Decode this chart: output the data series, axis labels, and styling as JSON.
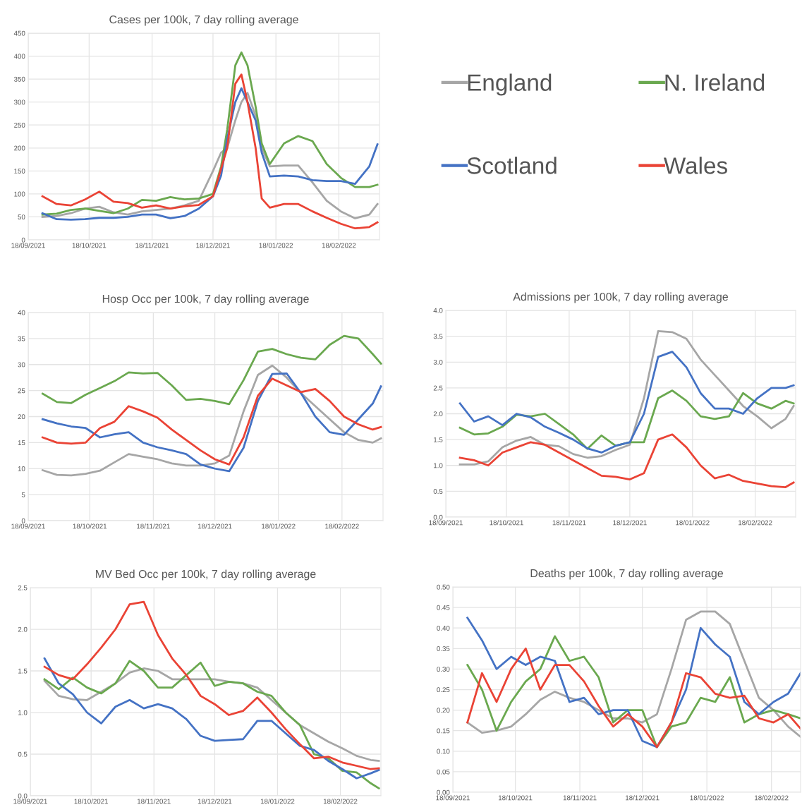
{
  "chart_data": [
    {
      "type": "line",
      "title": "Cases per 100k, 7 day rolling average",
      "legend": "right",
      "grid": true,
      "x": [
        "2021-09-25",
        "2021-10-02",
        "2021-10-09",
        "2021-10-16",
        "2021-10-23",
        "2021-10-30",
        "2021-11-06",
        "2021-11-13",
        "2021-11-20",
        "2021-11-27",
        "2021-12-04",
        "2021-12-11",
        "2021-12-18",
        "2021-12-22",
        "2021-12-25",
        "2021-12-29",
        "2022-01-01",
        "2022-01-04",
        "2022-01-08",
        "2022-01-11",
        "2022-01-15",
        "2022-01-22",
        "2022-01-29",
        "2022-02-05",
        "2022-02-12",
        "2022-02-19",
        "2022-02-26",
        "2022-03-05",
        "2022-03-09"
      ],
      "xlim": [
        "2021-09-18",
        "2022-03-10"
      ],
      "xticks": [
        {
          "value": "2021-09-18",
          "label": "18/09/2021"
        },
        {
          "value": "2021-10-18",
          "label": "18/10/2021"
        },
        {
          "value": "2021-11-18",
          "label": "18/11/2021"
        },
        {
          "value": "2021-12-18",
          "label": "18/12/2021"
        },
        {
          "value": "2022-01-18",
          "label": "18/01/2022"
        },
        {
          "value": "2022-02-18",
          "label": "18/02/2022"
        }
      ],
      "ylim": [
        0,
        450
      ],
      "yticks": [
        0,
        50,
        100,
        150,
        200,
        250,
        300,
        350,
        400,
        450
      ],
      "series": [
        {
          "name": "England",
          "color": "#a6a6a6",
          "values": [
            50,
            52,
            58,
            68,
            72,
            60,
            55,
            62,
            65,
            68,
            75,
            85,
            150,
            190,
            200,
            260,
            300,
            320,
            270,
            200,
            160,
            162,
            162,
            125,
            85,
            62,
            47,
            55,
            78
          ]
        },
        {
          "name": "N. Ireland",
          "color": "#6aa84f",
          "values": [
            55,
            57,
            65,
            68,
            63,
            58,
            68,
            87,
            85,
            93,
            88,
            90,
            100,
            160,
            240,
            380,
            408,
            380,
            290,
            210,
            165,
            210,
            226,
            215,
            165,
            135,
            115,
            115,
            120
          ]
        },
        {
          "name": "Scotland",
          "color": "#4472c4",
          "values": [
            58,
            45,
            44,
            45,
            48,
            48,
            50,
            55,
            55,
            47,
            52,
            68,
            95,
            140,
            220,
            300,
            330,
            300,
            260,
            190,
            138,
            140,
            138,
            130,
            128,
            128,
            122,
            160,
            208
          ]
        },
        {
          "name": "Wales",
          "color": "#ea4335",
          "values": [
            95,
            78,
            75,
            88,
            105,
            83,
            80,
            70,
            75,
            68,
            73,
            76,
            95,
            155,
            200,
            340,
            360,
            300,
            200,
            90,
            70,
            78,
            78,
            62,
            48,
            35,
            25,
            28,
            38
          ]
        }
      ]
    },
    {
      "type": "line",
      "title": "Hosp Occ per 100k, 7 day rolling average",
      "grid": true,
      "x": [
        "2021-09-25",
        "2021-10-02",
        "2021-10-09",
        "2021-10-16",
        "2021-10-23",
        "2021-10-30",
        "2021-11-06",
        "2021-11-13",
        "2021-11-20",
        "2021-11-27",
        "2021-12-04",
        "2021-12-11",
        "2021-12-18",
        "2021-12-25",
        "2022-01-01",
        "2022-01-08",
        "2022-01-15",
        "2022-01-22",
        "2022-01-29",
        "2022-02-05",
        "2022-02-12",
        "2022-02-19",
        "2022-02-26",
        "2022-03-05",
        "2022-03-09"
      ],
      "xlim": [
        "2021-09-18",
        "2022-03-10"
      ],
      "xticks": [
        {
          "value": "2021-09-18",
          "label": "18/09/2021"
        },
        {
          "value": "2021-10-18",
          "label": "18/10/2021"
        },
        {
          "value": "2021-11-18",
          "label": "18/11/2021"
        },
        {
          "value": "2021-12-18",
          "label": "18/12/2021"
        },
        {
          "value": "2022-01-18",
          "label": "18/01/2022"
        },
        {
          "value": "2022-02-18",
          "label": "18/02/2022"
        }
      ],
      "ylim": [
        0,
        40
      ],
      "yticks": [
        0,
        5,
        10,
        15,
        20,
        25,
        30,
        35,
        40
      ],
      "series": [
        {
          "color": "#a6a6a6",
          "values": [
            9.7,
            8.8,
            8.7,
            9.0,
            9.6,
            11.2,
            12.8,
            12.3,
            11.8,
            11.0,
            10.6,
            10.6,
            11.0,
            12.5,
            21,
            28,
            29.8,
            27.5,
            24.5,
            22,
            19.5,
            17,
            15.5,
            15,
            15.8
          ]
        },
        {
          "color": "#6aa84f",
          "values": [
            24.4,
            22.8,
            22.6,
            24.2,
            25.5,
            26.8,
            28.5,
            28.3,
            28.4,
            26,
            23.2,
            23.4,
            23.0,
            22.4,
            27,
            32.5,
            33,
            32,
            31.3,
            31,
            33.8,
            35.5,
            35,
            32,
            30.2
          ]
        },
        {
          "color": "#4472c4",
          "values": [
            19.5,
            18.7,
            18.1,
            17.8,
            16.0,
            16.6,
            17.0,
            15.0,
            14.1,
            13.5,
            12.8,
            10.8,
            10.0,
            9.5,
            14,
            23,
            28.2,
            28.3,
            24.5,
            20,
            17,
            16.5,
            19.5,
            22.5,
            25.8
          ]
        },
        {
          "color": "#ea4335",
          "values": [
            16,
            15,
            14.8,
            15,
            17.8,
            19,
            22,
            21,
            19.8,
            17.5,
            15.5,
            13.5,
            11.8,
            10.8,
            16,
            24,
            27.3,
            26,
            24.7,
            25.3,
            23,
            20,
            18.5,
            17.5,
            18
          ]
        }
      ]
    },
    {
      "type": "line",
      "title": "Admissions per 100k, 7 day rolling average",
      "grid": true,
      "x": [
        "2021-09-25",
        "2021-10-02",
        "2021-10-09",
        "2021-10-16",
        "2021-10-23",
        "2021-10-30",
        "2021-11-06",
        "2021-11-13",
        "2021-11-20",
        "2021-11-27",
        "2021-12-04",
        "2021-12-11",
        "2021-12-18",
        "2021-12-25",
        "2022-01-01",
        "2022-01-08",
        "2022-01-15",
        "2022-01-22",
        "2022-01-29",
        "2022-02-05",
        "2022-02-12",
        "2022-02-19",
        "2022-02-26",
        "2022-03-05",
        "2022-03-09"
      ],
      "xlim": [
        "2021-09-18",
        "2022-03-10"
      ],
      "xticks": [
        {
          "value": "2021-09-18",
          "label": "18/09/2021"
        },
        {
          "value": "2021-10-18",
          "label": "18/10/2021"
        },
        {
          "value": "2021-11-18",
          "label": "18/11/2021"
        },
        {
          "value": "2021-12-18",
          "label": "18/12/2021"
        },
        {
          "value": "2022-01-18",
          "label": "18/01/2022"
        },
        {
          "value": "2022-02-18",
          "label": "18/02/2022"
        }
      ],
      "ylim": [
        0,
        4
      ],
      "yticks": [
        {
          "value": 0,
          "label": "0.0"
        },
        {
          "value": 0.5,
          "label": "0.5"
        },
        {
          "value": 1,
          "label": "1.0"
        },
        {
          "value": 1.5,
          "label": "1.5"
        },
        {
          "value": 2,
          "label": "2.0"
        },
        {
          "value": 2.5,
          "label": "2.5"
        },
        {
          "value": 3,
          "label": "3.0"
        },
        {
          "value": 3.5,
          "label": "3.5"
        },
        {
          "value": 4,
          "label": "4.0"
        }
      ],
      "series": [
        {
          "color": "#a6a6a6",
          "values": [
            1.02,
            1.02,
            1.08,
            1.35,
            1.48,
            1.55,
            1.4,
            1.37,
            1.22,
            1.15,
            1.18,
            1.3,
            1.4,
            2.3,
            3.6,
            3.58,
            3.45,
            3.05,
            2.75,
            2.45,
            2.15,
            1.95,
            1.72,
            1.9,
            2.15
          ]
        },
        {
          "color": "#6aa84f",
          "values": [
            1.73,
            1.6,
            1.62,
            1.75,
            1.98,
            1.95,
            2.0,
            1.8,
            1.6,
            1.32,
            1.58,
            1.38,
            1.45,
            1.45,
            2.3,
            2.45,
            2.25,
            1.95,
            1.9,
            1.95,
            2.4,
            2.2,
            2.1,
            2.25,
            2.2
          ]
        },
        {
          "color": "#4472c4",
          "values": [
            2.2,
            1.85,
            1.95,
            1.78,
            2.0,
            1.93,
            1.75,
            1.63,
            1.5,
            1.33,
            1.25,
            1.38,
            1.45,
            2.0,
            3.1,
            3.2,
            2.9,
            2.4,
            2.1,
            2.1,
            2.0,
            2.3,
            2.5,
            2.5,
            2.55
          ]
        },
        {
          "color": "#ea4335",
          "values": [
            1.15,
            1.1,
            1.0,
            1.25,
            1.35,
            1.45,
            1.4,
            1.25,
            1.1,
            0.95,
            0.8,
            0.78,
            0.73,
            0.85,
            1.5,
            1.6,
            1.35,
            1.0,
            0.75,
            0.82,
            0.7,
            0.65,
            0.6,
            0.58,
            0.67
          ]
        }
      ]
    },
    {
      "type": "line",
      "title": "MV Bed Occ per 100k, 7 day rolling average",
      "grid": true,
      "x": [
        "2021-09-25",
        "2021-10-02",
        "2021-10-09",
        "2021-10-16",
        "2021-10-23",
        "2021-10-30",
        "2021-11-06",
        "2021-11-13",
        "2021-11-20",
        "2021-11-27",
        "2021-12-04",
        "2021-12-11",
        "2021-12-18",
        "2021-12-25",
        "2022-01-01",
        "2022-01-08",
        "2022-01-15",
        "2022-01-22",
        "2022-01-29",
        "2022-02-05",
        "2022-02-12",
        "2022-02-19",
        "2022-02-26",
        "2022-03-05",
        "2022-03-09"
      ],
      "xlim": [
        "2021-09-18",
        "2022-03-10"
      ],
      "xticks": [
        {
          "value": "2021-09-18",
          "label": "18/09/2021"
        },
        {
          "value": "2021-10-18",
          "label": "18/10/2021"
        },
        {
          "value": "2021-11-18",
          "label": "18/11/2021"
        },
        {
          "value": "2021-12-18",
          "label": "18/12/2021"
        },
        {
          "value": "2022-01-18",
          "label": "18/01/2022"
        },
        {
          "value": "2022-02-18",
          "label": "18/02/2022"
        }
      ],
      "ylim": [
        0,
        2.5
      ],
      "yticks": [
        {
          "value": 0,
          "label": "0.0"
        },
        {
          "value": 0.5,
          "label": "0.5"
        },
        {
          "value": 1,
          "label": "1.0"
        },
        {
          "value": 1.5,
          "label": "1.5"
        },
        {
          "value": 2,
          "label": "2.0"
        },
        {
          "value": 2.5,
          "label": "2.5"
        }
      ],
      "series": [
        {
          "color": "#a6a6a6",
          "values": [
            1.38,
            1.2,
            1.16,
            1.15,
            1.25,
            1.35,
            1.48,
            1.53,
            1.5,
            1.4,
            1.4,
            1.4,
            1.4,
            1.37,
            1.35,
            1.3,
            1.15,
            1.0,
            0.85,
            0.75,
            0.65,
            0.57,
            0.48,
            0.43,
            0.42
          ]
        },
        {
          "color": "#6aa84f",
          "values": [
            1.4,
            1.28,
            1.42,
            1.3,
            1.23,
            1.35,
            1.62,
            1.5,
            1.3,
            1.3,
            1.45,
            1.6,
            1.32,
            1.37,
            1.35,
            1.25,
            1.2,
            1.0,
            0.85,
            0.5,
            0.45,
            0.3,
            0.28,
            0.15,
            0.09
          ]
        },
        {
          "color": "#4472c4",
          "values": [
            1.65,
            1.35,
            1.22,
            1.0,
            0.87,
            1.07,
            1.15,
            1.05,
            1.1,
            1.05,
            0.92,
            0.72,
            0.66,
            0.67,
            0.68,
            0.9,
            0.9,
            0.75,
            0.6,
            0.55,
            0.42,
            0.32,
            0.21,
            0.27,
            0.31
          ]
        },
        {
          "color": "#ea4335",
          "values": [
            1.55,
            1.45,
            1.4,
            1.58,
            1.78,
            2.0,
            2.3,
            2.33,
            1.93,
            1.65,
            1.45,
            1.2,
            1.1,
            0.97,
            1.02,
            1.18,
            1.0,
            0.8,
            0.62,
            0.45,
            0.47,
            0.4,
            0.36,
            0.32,
            0.33
          ]
        }
      ]
    },
    {
      "type": "line",
      "title": "Deaths per 100k, 7 day rolling average",
      "grid": true,
      "x": [
        "2021-09-25",
        "2021-10-02",
        "2021-10-09",
        "2021-10-16",
        "2021-10-23",
        "2021-10-30",
        "2021-11-06",
        "2021-11-13",
        "2021-11-20",
        "2021-11-27",
        "2021-12-04",
        "2021-12-11",
        "2021-12-18",
        "2021-12-25",
        "2022-01-01",
        "2022-01-08",
        "2022-01-15",
        "2022-01-22",
        "2022-01-29",
        "2022-02-05",
        "2022-02-12",
        "2022-02-19",
        "2022-02-26",
        "2022-03-04"
      ],
      "xlim": [
        "2021-09-18",
        "2022-03-04"
      ],
      "xticks": [
        {
          "value": "2021-09-18",
          "label": "18/09/2021"
        },
        {
          "value": "2021-10-18",
          "label": "18/10/2021"
        },
        {
          "value": "2021-11-18",
          "label": "18/11/2021"
        },
        {
          "value": "2021-12-18",
          "label": "18/12/2021"
        },
        {
          "value": "2022-01-18",
          "label": "18/01/2022"
        },
        {
          "value": "2022-02-18",
          "label": "18/02/2022"
        }
      ],
      "ylim": [
        0,
        0.5
      ],
      "yticks": [
        {
          "value": 0,
          "label": "0.00"
        },
        {
          "value": 0.05,
          "label": "0.05"
        },
        {
          "value": 0.1,
          "label": "0.10"
        },
        {
          "value": 0.15,
          "label": "0.15"
        },
        {
          "value": 0.2,
          "label": "0.20"
        },
        {
          "value": 0.25,
          "label": "0.25"
        },
        {
          "value": 0.3,
          "label": "0.30"
        },
        {
          "value": 0.35,
          "label": "0.35"
        },
        {
          "value": 0.4,
          "label": "0.40"
        },
        {
          "value": 0.45,
          "label": "0.45"
        },
        {
          "value": 0.5,
          "label": "0.50"
        }
      ],
      "series": [
        {
          "color": "#a6a6a6",
          "values": [
            0.17,
            0.145,
            0.15,
            0.16,
            0.19,
            0.225,
            0.245,
            0.23,
            0.22,
            0.2,
            0.18,
            0.18,
            0.17,
            0.19,
            0.3,
            0.42,
            0.44,
            0.44,
            0.41,
            0.32,
            0.23,
            0.2,
            0.16,
            0.135
          ]
        },
        {
          "color": "#6aa84f",
          "values": [
            0.31,
            0.25,
            0.15,
            0.22,
            0.27,
            0.3,
            0.38,
            0.32,
            0.33,
            0.28,
            0.17,
            0.2,
            0.2,
            0.11,
            0.16,
            0.17,
            0.23,
            0.22,
            0.28,
            0.17,
            0.19,
            0.2,
            0.19,
            0.18
          ]
        },
        {
          "color": "#4472c4",
          "values": [
            0.425,
            0.37,
            0.3,
            0.33,
            0.31,
            0.33,
            0.32,
            0.22,
            0.23,
            0.19,
            0.2,
            0.2,
            0.125,
            0.11,
            0.17,
            0.25,
            0.4,
            0.36,
            0.33,
            0.22,
            0.19,
            0.22,
            0.24,
            0.29
          ]
        },
        {
          "color": "#ea4335",
          "values": [
            0.17,
            0.29,
            0.22,
            0.3,
            0.35,
            0.25,
            0.31,
            0.31,
            0.27,
            0.21,
            0.16,
            0.19,
            0.16,
            0.11,
            0.17,
            0.29,
            0.28,
            0.24,
            0.23,
            0.235,
            0.18,
            0.17,
            0.19,
            0.155
          ]
        }
      ]
    }
  ]
}
